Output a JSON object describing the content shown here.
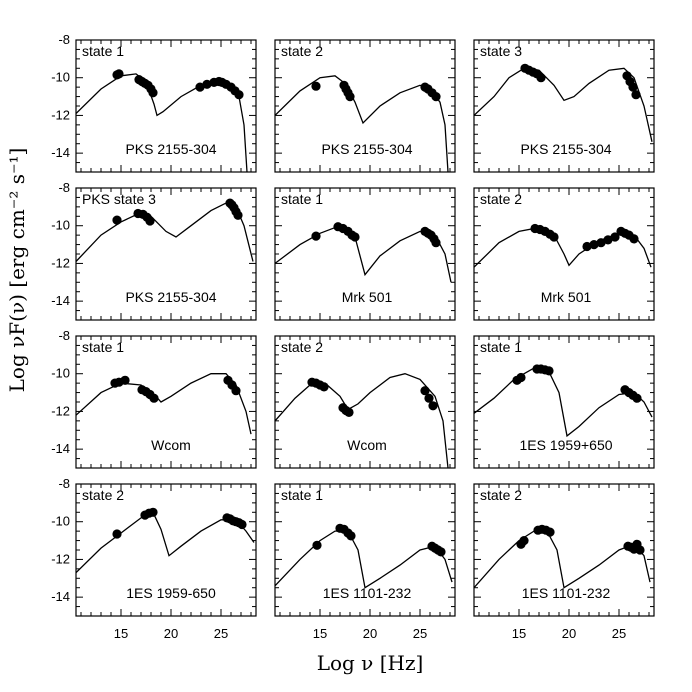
{
  "figure": {
    "ylabel": "Log νF(ν) [erg cm⁻² s⁻¹]",
    "xlabel": "Log ν [Hz]"
  },
  "chart_data": {
    "type": "scatter",
    "grid": false,
    "xlim": [
      10.5,
      28.5
    ],
    "ylim": [
      -15,
      -8
    ],
    "xticks": [
      15,
      20,
      25
    ],
    "yticks": [
      -8,
      -10,
      -12,
      -14
    ],
    "panels": [
      {
        "state": "state 1",
        "source": "PKS 2155-304",
        "curve": [
          [
            10.5,
            -11.9
          ],
          [
            13,
            -10.6
          ],
          [
            15,
            -9.9
          ],
          [
            16.5,
            -9.8
          ],
          [
            17.5,
            -10.2
          ],
          [
            18.3,
            -11.4
          ],
          [
            18.6,
            -12
          ],
          [
            19.2,
            -11.8
          ],
          [
            21,
            -11
          ],
          [
            23,
            -10.4
          ],
          [
            25,
            -10.2
          ],
          [
            26,
            -10.4
          ],
          [
            26.8,
            -11
          ],
          [
            27.3,
            -12.5
          ],
          [
            27.6,
            -15
          ]
        ],
        "points": [
          [
            14.6,
            -9.85
          ],
          [
            14.8,
            -9.8
          ],
          [
            16.8,
            -10.1
          ],
          [
            17.1,
            -10.2
          ],
          [
            17.4,
            -10.3
          ],
          [
            17.7,
            -10.4
          ],
          [
            18,
            -10.6
          ],
          [
            18.2,
            -10.8
          ],
          [
            22.9,
            -10.5
          ],
          [
            23.6,
            -10.35
          ],
          [
            24.3,
            -10.25
          ],
          [
            24.8,
            -10.2
          ],
          [
            25.1,
            -10.25
          ],
          [
            25.5,
            -10.35
          ],
          [
            26,
            -10.5
          ],
          [
            26.4,
            -10.7
          ],
          [
            26.8,
            -10.9
          ]
        ]
      },
      {
        "state": "state 2",
        "source": "PKS 2155-304",
        "curve": [
          [
            10.5,
            -12
          ],
          [
            13,
            -10.7
          ],
          [
            15,
            -10
          ],
          [
            16.5,
            -9.9
          ],
          [
            17.5,
            -10.3
          ],
          [
            18.5,
            -11.3
          ],
          [
            19.3,
            -12.4
          ],
          [
            21,
            -11.5
          ],
          [
            23,
            -10.8
          ],
          [
            25,
            -10.4
          ],
          [
            26,
            -10.6
          ],
          [
            27,
            -11.3
          ],
          [
            27.5,
            -12.5
          ],
          [
            27.8,
            -15
          ]
        ],
        "points": [
          [
            14.6,
            -10.45
          ],
          [
            17.4,
            -10.4
          ],
          [
            17.6,
            -10.6
          ],
          [
            17.8,
            -10.8
          ],
          [
            18,
            -11
          ],
          [
            25.5,
            -10.5
          ],
          [
            25.8,
            -10.6
          ],
          [
            26.2,
            -10.8
          ],
          [
            26.6,
            -11
          ]
        ]
      },
      {
        "state": "state 3",
        "source": "PKS 2155-304",
        "curve": [
          [
            10.5,
            -12
          ],
          [
            12.5,
            -11
          ],
          [
            14,
            -10
          ],
          [
            15.5,
            -9.5
          ],
          [
            17,
            -9.6
          ],
          [
            18.5,
            -10.4
          ],
          [
            19.5,
            -11.2
          ],
          [
            20.5,
            -11
          ],
          [
            22,
            -10.3
          ],
          [
            24,
            -9.6
          ],
          [
            25.5,
            -9.5
          ],
          [
            26.5,
            -10
          ],
          [
            27.5,
            -11.5
          ],
          [
            28.3,
            -13.4
          ]
        ],
        "points": [
          [
            15.6,
            -9.5
          ],
          [
            16,
            -9.6
          ],
          [
            16.4,
            -9.7
          ],
          [
            16.8,
            -9.8
          ],
          [
            17.2,
            -10
          ],
          [
            25.8,
            -9.9
          ],
          [
            26.1,
            -10.2
          ],
          [
            26.4,
            -10.5
          ],
          [
            26.7,
            -10.9
          ]
        ]
      },
      {
        "state": "PKS state 3",
        "source": "PKS 2155-304",
        "curve": [
          [
            10.5,
            -11.9
          ],
          [
            13,
            -10.5
          ],
          [
            15,
            -9.8
          ],
          [
            17,
            -9.3
          ],
          [
            18,
            -9.5
          ],
          [
            19.5,
            -10.3
          ],
          [
            20.5,
            -10.6
          ],
          [
            22,
            -10
          ],
          [
            24,
            -9.2
          ],
          [
            25.5,
            -8.8
          ],
          [
            26.5,
            -9
          ],
          [
            27.3,
            -10
          ],
          [
            28.2,
            -11.9
          ]
        ],
        "points": [
          [
            14.6,
            -9.7
          ],
          [
            16.7,
            -9.35
          ],
          [
            17.2,
            -9.4
          ],
          [
            17.6,
            -9.55
          ],
          [
            17.9,
            -9.75
          ],
          [
            25.9,
            -8.8
          ],
          [
            26.1,
            -8.9
          ],
          [
            26.3,
            -9.05
          ],
          [
            26.5,
            -9.25
          ],
          [
            26.7,
            -9.45
          ]
        ]
      },
      {
        "state": "state 1",
        "source": "Mrk 501",
        "curve": [
          [
            10.5,
            -12
          ],
          [
            13,
            -11
          ],
          [
            15,
            -10.4
          ],
          [
            17,
            -10
          ],
          [
            18.5,
            -10.6
          ],
          [
            19.5,
            -12.6
          ],
          [
            21,
            -11.6
          ],
          [
            23,
            -10.8
          ],
          [
            25,
            -10.3
          ],
          [
            26.5,
            -10.5
          ],
          [
            27.5,
            -11.5
          ],
          [
            28.1,
            -13
          ]
        ],
        "points": [
          [
            14.6,
            -10.55
          ],
          [
            16.8,
            -10.05
          ],
          [
            17.3,
            -10.15
          ],
          [
            17.8,
            -10.3
          ],
          [
            18.2,
            -10.5
          ],
          [
            18.5,
            -10.6
          ],
          [
            25.5,
            -10.3
          ],
          [
            25.8,
            -10.4
          ],
          [
            26.1,
            -10.5
          ],
          [
            26.4,
            -10.7
          ],
          [
            26.6,
            -10.9
          ]
        ]
      },
      {
        "state": "state 2",
        "source": "Mrk 501",
        "curve": [
          [
            10.5,
            -12.2
          ],
          [
            13,
            -10.9
          ],
          [
            15,
            -10.3
          ],
          [
            17,
            -10.1
          ],
          [
            18.5,
            -10.5
          ],
          [
            19.5,
            -11.5
          ],
          [
            20,
            -12.1
          ],
          [
            21,
            -11.5
          ],
          [
            23,
            -10.8
          ],
          [
            25,
            -10.4
          ],
          [
            26.5,
            -10.5
          ],
          [
            27.5,
            -11.2
          ],
          [
            28.2,
            -12.2
          ]
        ],
        "points": [
          [
            16.6,
            -10.15
          ],
          [
            17.1,
            -10.2
          ],
          [
            17.6,
            -10.3
          ],
          [
            18.1,
            -10.45
          ],
          [
            18.5,
            -10.6
          ],
          [
            21.8,
            -11.1
          ],
          [
            22.5,
            -11
          ],
          [
            23.2,
            -10.9
          ],
          [
            23.9,
            -10.75
          ],
          [
            24.6,
            -10.6
          ],
          [
            25.2,
            -10.3
          ],
          [
            25.6,
            -10.4
          ],
          [
            26,
            -10.5
          ],
          [
            26.5,
            -10.7
          ]
        ]
      },
      {
        "state": "state 1",
        "source": "Wcom",
        "curve": [
          [
            10.5,
            -12.2
          ],
          [
            13,
            -11
          ],
          [
            15,
            -10.5
          ],
          [
            17,
            -10.6
          ],
          [
            18.5,
            -11.2
          ],
          [
            19,
            -11.5
          ],
          [
            20,
            -11.2
          ],
          [
            22,
            -10.5
          ],
          [
            24,
            -10
          ],
          [
            25.5,
            -10
          ],
          [
            26.5,
            -10.6
          ],
          [
            27.5,
            -12
          ],
          [
            28,
            -13.2
          ]
        ],
        "points": [
          [
            14.4,
            -10.5
          ],
          [
            14.8,
            -10.45
          ],
          [
            15.4,
            -10.35
          ],
          [
            17.1,
            -10.85
          ],
          [
            17.5,
            -10.95
          ],
          [
            17.9,
            -11.1
          ],
          [
            18.3,
            -11.3
          ],
          [
            25.7,
            -10.35
          ],
          [
            26.1,
            -10.6
          ],
          [
            26.5,
            -10.9
          ]
        ]
      },
      {
        "state": "state 2",
        "source": "Wcom",
        "curve": [
          [
            10.5,
            -12.5
          ],
          [
            12.5,
            -11.3
          ],
          [
            14,
            -10.6
          ],
          [
            15.5,
            -10.5
          ],
          [
            17,
            -11.2
          ],
          [
            17.8,
            -11.9
          ],
          [
            18.8,
            -11.6
          ],
          [
            20,
            -11
          ],
          [
            22,
            -10.2
          ],
          [
            23.5,
            -10
          ],
          [
            25,
            -10.3
          ],
          [
            26.5,
            -11.2
          ],
          [
            27.3,
            -12.5
          ],
          [
            27.8,
            -15
          ]
        ],
        "points": [
          [
            14.2,
            -10.45
          ],
          [
            14.6,
            -10.5
          ],
          [
            15,
            -10.6
          ],
          [
            15.4,
            -10.7
          ],
          [
            17.3,
            -11.8
          ],
          [
            17.6,
            -11.95
          ],
          [
            17.9,
            -12.05
          ],
          [
            25.5,
            -10.9
          ],
          [
            25.9,
            -11.3
          ],
          [
            26.3,
            -11.7
          ]
        ]
      },
      {
        "state": "state 1",
        "source": "1ES 1959+650",
        "curve": [
          [
            10.5,
            -12.1
          ],
          [
            12.5,
            -11.3
          ],
          [
            14.5,
            -10.3
          ],
          [
            16.5,
            -9.7
          ],
          [
            18,
            -9.9
          ],
          [
            19,
            -11
          ],
          [
            19.8,
            -13.3
          ],
          [
            21,
            -12.8
          ],
          [
            23,
            -11.8
          ],
          [
            25,
            -11.1
          ],
          [
            26.5,
            -11
          ],
          [
            27.5,
            -11.5
          ],
          [
            28.3,
            -12.3
          ]
        ],
        "points": [
          [
            14.8,
            -10.35
          ],
          [
            15.2,
            -10.2
          ],
          [
            16.8,
            -9.75
          ],
          [
            17.2,
            -9.75
          ],
          [
            17.6,
            -9.8
          ],
          [
            18,
            -9.85
          ],
          [
            25.6,
            -10.85
          ],
          [
            26,
            -11
          ],
          [
            26.4,
            -11.15
          ],
          [
            26.8,
            -11.3
          ]
        ]
      },
      {
        "state": "state 2",
        "source": "1ES 1959-650",
        "curve": [
          [
            10.5,
            -12.7
          ],
          [
            13,
            -11.4
          ],
          [
            15,
            -10.6
          ],
          [
            17,
            -9.8
          ],
          [
            18.2,
            -9.5
          ],
          [
            19,
            -10.4
          ],
          [
            19.8,
            -11.8
          ],
          [
            21,
            -11.3
          ],
          [
            23,
            -10.5
          ],
          [
            25,
            -9.9
          ],
          [
            26.5,
            -9.9
          ],
          [
            27.5,
            -10.5
          ],
          [
            28.3,
            -11.1
          ]
        ],
        "points": [
          [
            14.6,
            -10.65
          ],
          [
            17.4,
            -9.65
          ],
          [
            17.8,
            -9.55
          ],
          [
            18.2,
            -9.5
          ],
          [
            25.6,
            -9.8
          ],
          [
            25.9,
            -9.85
          ],
          [
            26.2,
            -9.95
          ],
          [
            26.5,
            -10
          ],
          [
            26.8,
            -10.05
          ],
          [
            27.1,
            -10.15
          ]
        ]
      },
      {
        "state": "state 1",
        "source": "1ES 1101-232",
        "curve": [
          [
            10.5,
            -13.4
          ],
          [
            13,
            -12
          ],
          [
            15,
            -11
          ],
          [
            16.5,
            -10.5
          ],
          [
            17.8,
            -10.5
          ],
          [
            18.8,
            -11.5
          ],
          [
            19.5,
            -13.5
          ],
          [
            21,
            -13
          ],
          [
            23,
            -12.3
          ],
          [
            25,
            -11.5
          ],
          [
            26.5,
            -11.3
          ],
          [
            27.5,
            -12
          ],
          [
            28.2,
            -13.2
          ]
        ],
        "points": [
          [
            14.7,
            -11.25
          ],
          [
            17,
            -10.35
          ],
          [
            17.4,
            -10.4
          ],
          [
            17.8,
            -10.6
          ],
          [
            18.1,
            -10.75
          ],
          [
            26.2,
            -11.3
          ],
          [
            26.5,
            -11.4
          ],
          [
            26.8,
            -11.5
          ],
          [
            27.1,
            -11.6
          ]
        ]
      },
      {
        "state": "state 2",
        "source": "1ES 1101-232",
        "curve": [
          [
            10.5,
            -13.5
          ],
          [
            13,
            -12
          ],
          [
            15,
            -11
          ],
          [
            16.5,
            -10.5
          ],
          [
            17.8,
            -10.5
          ],
          [
            18.8,
            -11.5
          ],
          [
            19.5,
            -13.5
          ],
          [
            21,
            -13
          ],
          [
            23,
            -12.3
          ],
          [
            25,
            -11.5
          ],
          [
            26.5,
            -11.2
          ],
          [
            27.5,
            -11.8
          ],
          [
            28.1,
            -13.2
          ]
        ],
        "points": [
          [
            15.2,
            -11.2
          ],
          [
            15.5,
            -11
          ],
          [
            16.9,
            -10.45
          ],
          [
            17.3,
            -10.4
          ],
          [
            17.7,
            -10.45
          ],
          [
            18.1,
            -10.55
          ],
          [
            25.9,
            -11.3
          ],
          [
            26.2,
            -11.35
          ],
          [
            26.5,
            -11.45
          ],
          [
            26.8,
            -11.2
          ],
          [
            27.1,
            -11.5
          ]
        ]
      }
    ]
  }
}
